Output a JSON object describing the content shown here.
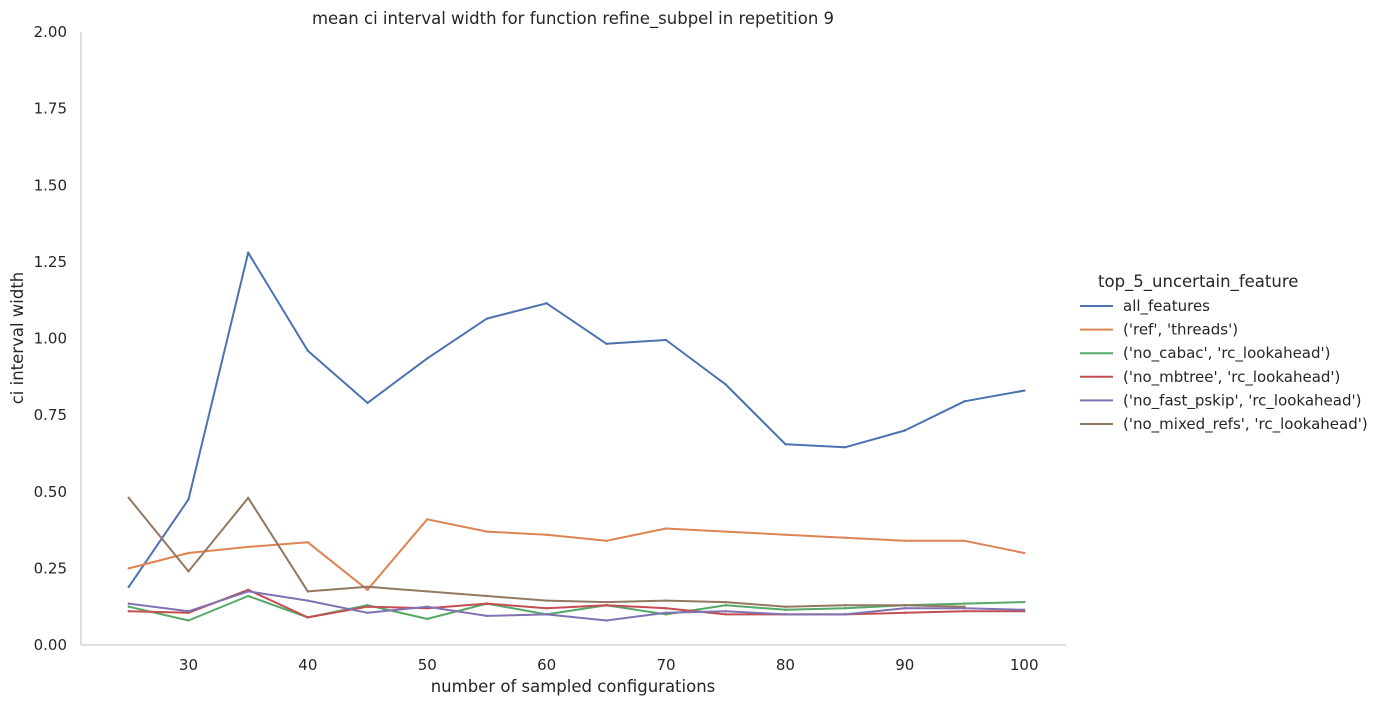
{
  "chart_data": {
    "type": "line",
    "title": "mean ci interval width for function refine_subpel in repetition 9",
    "xlabel": "number of sampled configurations",
    "ylabel": "ci interval width",
    "xlim": [
      21,
      103.5
    ],
    "ylim": [
      0,
      2.0
    ],
    "xticks": [
      30,
      40,
      50,
      60,
      70,
      80,
      90,
      100
    ],
    "yticks": [
      0.0,
      0.25,
      0.5,
      0.75,
      1.0,
      1.25,
      1.5,
      1.75,
      2.0
    ],
    "ytick_labels": [
      "0.00",
      "0.25",
      "0.50",
      "0.75",
      "1.00",
      "1.25",
      "1.50",
      "1.75",
      "2.00"
    ],
    "grid": false,
    "legend_title": "top_5_uncertain_feature",
    "legend_position": "right",
    "x": [
      25,
      30,
      35,
      40,
      45,
      50,
      55,
      60,
      65,
      70,
      75,
      80,
      85,
      90,
      95,
      100
    ],
    "series": [
      {
        "name": "all_features",
        "color": "#4c72b0",
        "values": [
          0.19,
          0.475,
          1.28,
          0.96,
          0.79,
          0.935,
          1.065,
          1.115,
          0.983,
          0.995,
          0.85,
          0.655,
          0.645,
          0.7,
          0.795,
          0.83
        ]
      },
      {
        "name": "('ref', 'threads')",
        "color": "#dd8452",
        "values": [
          0.25,
          0.3,
          0.32,
          0.335,
          0.18,
          0.41,
          0.37,
          0.36,
          0.34,
          0.38,
          0.37,
          0.36,
          0.35,
          0.34,
          0.34,
          0.3
        ]
      },
      {
        "name": "('no_cabac', 'rc_lookahead')",
        "color": "#55a868",
        "values": [
          0.125,
          0.08,
          0.16,
          0.09,
          0.13,
          0.085,
          0.135,
          0.1,
          0.13,
          0.1,
          0.13,
          0.115,
          0.12,
          0.13,
          0.135,
          0.14
        ]
      },
      {
        "name": "('no_mbtree', 'rc_lookahead')",
        "color": "#c44e52",
        "values": [
          0.11,
          0.105,
          0.18,
          0.09,
          0.125,
          0.12,
          0.135,
          0.12,
          0.13,
          0.12,
          0.1,
          0.1,
          0.1,
          0.105,
          0.11,
          0.11
        ]
      },
      {
        "name": "('no_fast_pskip', 'rc_lookahead')",
        "color": "#8172b3",
        "values": [
          0.135,
          0.11,
          0.175,
          0.145,
          0.105,
          0.125,
          0.095,
          0.1,
          0.08,
          0.105,
          0.11,
          0.1,
          0.1,
          0.12,
          0.12,
          0.115
        ]
      },
      {
        "name": "('no_mixed_refs', 'rc_lookahead')",
        "color": "#937860",
        "values": [
          0.48,
          0.24,
          0.48,
          0.175,
          0.19,
          0.175,
          0.16,
          0.145,
          0.14,
          0.145,
          0.14,
          0.125,
          0.13,
          0.13,
          0.125,
          null
        ]
      }
    ]
  }
}
